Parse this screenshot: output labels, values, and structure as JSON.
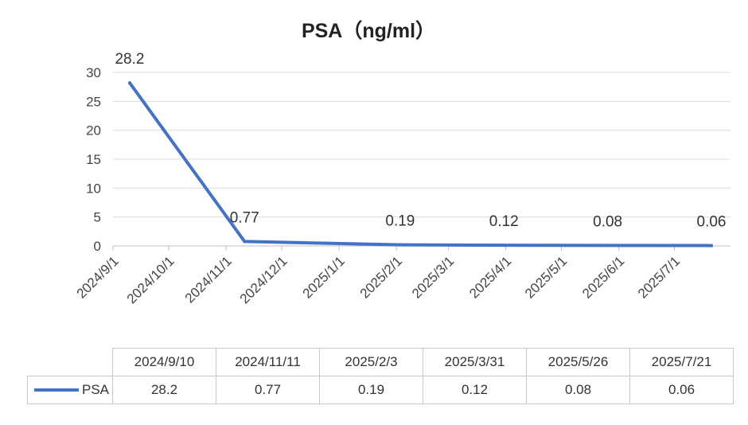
{
  "chart_data": {
    "type": "line",
    "title": "PSA（ng/ml）",
    "xlabel": "",
    "ylabel": "",
    "ylim": [
      0,
      30
    ],
    "yticks": [
      0,
      5,
      10,
      15,
      20,
      25,
      30
    ],
    "x_tick_labels": [
      "2024/9/1",
      "2024/10/1",
      "2024/11/1",
      "2024/12/1",
      "2025/1/1",
      "2025/2/1",
      "2025/3/1",
      "2025/4/1",
      "2025/5/1",
      "2025/6/1",
      "2025/7/1"
    ],
    "x_tick_dates": [
      "2024-09-01",
      "2024-10-01",
      "2024-11-01",
      "2024-12-01",
      "2025-01-01",
      "2025-02-01",
      "2025-03-01",
      "2025-04-01",
      "2025-05-01",
      "2025-06-01",
      "2025-07-01"
    ],
    "grid": true,
    "legend": "bottom-left",
    "series": [
      {
        "name": "PSA",
        "color": "#4472c4",
        "x": [
          "2024/9/10",
          "2024/11/11",
          "2025/2/3",
          "2025/3/31",
          "2025/5/26",
          "2025/7/21"
        ],
        "x_dates": [
          "2024-09-10",
          "2024-11-11",
          "2025-02-03",
          "2025-03-31",
          "2025-05-26",
          "2025-07-21"
        ],
        "values": [
          28.2,
          0.77,
          0.19,
          0.12,
          0.08,
          0.06
        ],
        "labels": [
          "28.2",
          "0.77",
          "0.19",
          "0.12",
          "0.08",
          "0.06"
        ]
      }
    ]
  },
  "table": {
    "headers": [
      "2024/9/10",
      "2024/11/11",
      "2025/2/3",
      "2025/3/31",
      "2025/5/26",
      "2025/7/21"
    ],
    "row_label": "PSA",
    "row_values": [
      "28.2",
      "0.77",
      "0.19",
      "0.12",
      "0.08",
      "0.06"
    ]
  }
}
